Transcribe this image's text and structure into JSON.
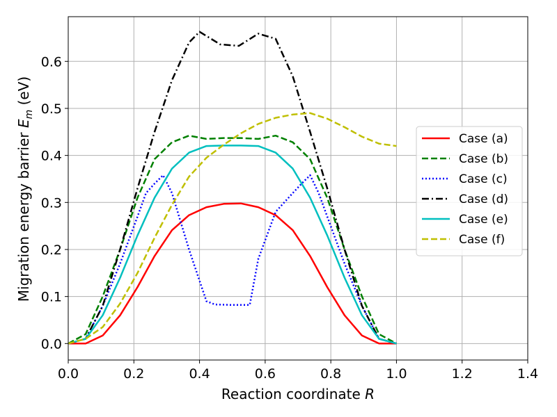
{
  "chart_data": {
    "type": "line",
    "xlabel": "Reaction coordinate",
    "xlabel_var": "R",
    "ylabel": "Migration energy barrier",
    "ylabel_var": "E",
    "ylabel_sub": "m",
    "ylabel_unit": "(eV)",
    "xlim": [
      0.0,
      1.4
    ],
    "ylim": [
      -0.035,
      0.695
    ],
    "xticks": [
      "0.0",
      "0.2",
      "0.4",
      "0.6",
      "0.8",
      "1.0",
      "1.2",
      "1.4"
    ],
    "yticks": [
      "0.0",
      "0.1",
      "0.2",
      "0.3",
      "0.4",
      "0.5",
      "0.6"
    ],
    "grid": true,
    "legend_position": "center-right",
    "series": [
      {
        "name": "Case (a)",
        "color": "#ff0000",
        "style": "solid",
        "x": [
          0,
          0.053,
          0.105,
          0.158,
          0.211,
          0.263,
          0.316,
          0.368,
          0.421,
          0.474,
          0.526,
          0.579,
          0.632,
          0.684,
          0.737,
          0.789,
          0.842,
          0.895,
          0.947,
          1.0
        ],
        "y": [
          0.0,
          0.0,
          0.017,
          0.06,
          0.12,
          0.186,
          0.241,
          0.273,
          0.29,
          0.297,
          0.298,
          0.29,
          0.273,
          0.241,
          0.186,
          0.12,
          0.06,
          0.017,
          0.0,
          0.0
        ]
      },
      {
        "name": "Case (b)",
        "color": "#008000",
        "style": "dashed",
        "x": [
          0,
          0.053,
          0.105,
          0.158,
          0.211,
          0.263,
          0.316,
          0.368,
          0.421,
          0.474,
          0.526,
          0.579,
          0.632,
          0.684,
          0.737,
          0.789,
          0.842,
          0.895,
          0.947,
          1.0
        ],
        "y": [
          0.0,
          0.02,
          0.1,
          0.2,
          0.31,
          0.392,
          0.428,
          0.442,
          0.435,
          0.437,
          0.437,
          0.435,
          0.442,
          0.428,
          0.392,
          0.31,
          0.2,
          0.1,
          0.02,
          0.0
        ]
      },
      {
        "name": "Case (c)",
        "color": "#0000ff",
        "style": "dotted",
        "x": [
          0,
          0.053,
          0.105,
          0.158,
          0.211,
          0.237,
          0.263,
          0.289,
          0.316,
          0.368,
          0.421,
          0.447,
          0.5,
          0.553,
          0.579,
          0.632,
          0.684,
          0.711,
          0.737,
          0.763,
          0.789,
          0.842,
          0.895,
          0.947,
          1.0
        ],
        "y": [
          0.0,
          0.01,
          0.08,
          0.17,
          0.27,
          0.32,
          0.34,
          0.358,
          0.32,
          0.2,
          0.09,
          0.083,
          0.082,
          0.082,
          0.18,
          0.28,
          0.32,
          0.34,
          0.358,
          0.32,
          0.27,
          0.17,
          0.08,
          0.01,
          0.0
        ]
      },
      {
        "name": "Case (d)",
        "color": "#000000",
        "style": "dashdot",
        "x": [
          0,
          0.053,
          0.105,
          0.158,
          0.211,
          0.263,
          0.316,
          0.368,
          0.4,
          0.463,
          0.52,
          0.579,
          0.632,
          0.684,
          0.737,
          0.789,
          0.842,
          0.895,
          0.947,
          1.0
        ],
        "y": [
          0.0,
          0.01,
          0.08,
          0.2,
          0.33,
          0.45,
          0.56,
          0.64,
          0.663,
          0.636,
          0.633,
          0.659,
          0.648,
          0.568,
          0.45,
          0.33,
          0.2,
          0.08,
          0.01,
          0.0
        ]
      },
      {
        "name": "Case (e)",
        "color": "#00bfbf",
        "style": "solid",
        "x": [
          0,
          0.053,
          0.105,
          0.158,
          0.211,
          0.263,
          0.316,
          0.368,
          0.421,
          0.474,
          0.526,
          0.579,
          0.632,
          0.684,
          0.737,
          0.789,
          0.842,
          0.895,
          0.947,
          1.0
        ],
        "y": [
          0.0,
          0.01,
          0.06,
          0.14,
          0.23,
          0.31,
          0.372,
          0.406,
          0.42,
          0.421,
          0.421,
          0.42,
          0.406,
          0.372,
          0.31,
          0.23,
          0.14,
          0.06,
          0.01,
          0.0
        ]
      },
      {
        "name": "Case (f)",
        "color": "#bfbf00",
        "style": "dashed",
        "x": [
          0,
          0.053,
          0.105,
          0.158,
          0.211,
          0.263,
          0.316,
          0.368,
          0.421,
          0.474,
          0.526,
          0.579,
          0.632,
          0.684,
          0.737,
          0.789,
          0.842,
          0.895,
          0.947,
          1.0
        ],
        "y": [
          0.0,
          0.01,
          0.035,
          0.085,
          0.15,
          0.225,
          0.295,
          0.355,
          0.395,
          0.423,
          0.447,
          0.467,
          0.48,
          0.487,
          0.49,
          0.478,
          0.46,
          0.44,
          0.425,
          0.42
        ]
      }
    ]
  }
}
